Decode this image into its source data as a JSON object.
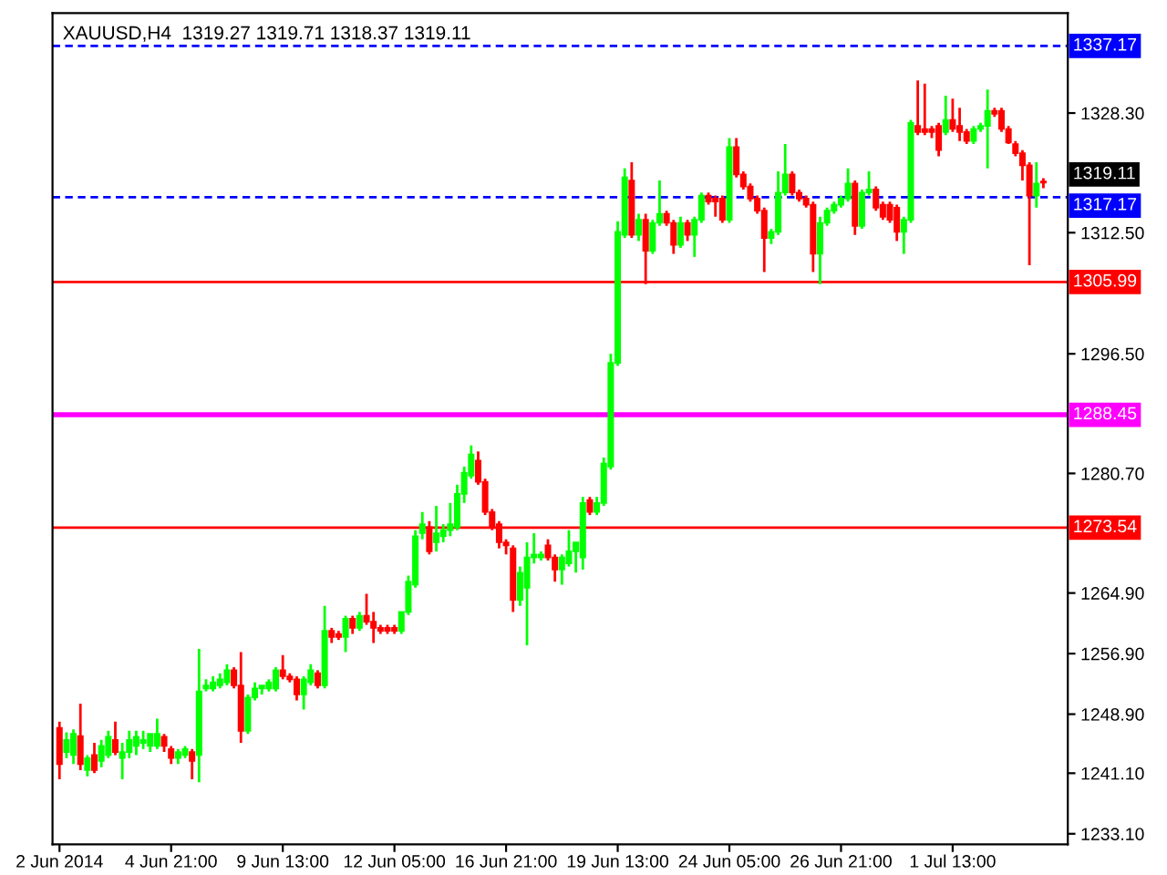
{
  "chart_data": {
    "type": "candlestick",
    "title": "XAUUSD,H4  1319.27 1319.71 1318.37 1319.11",
    "categories": [
      "2 Jun 2014",
      null,
      null,
      null,
      null,
      null,
      null,
      null,
      null,
      null,
      null,
      null,
      null,
      null,
      null,
      null,
      "4 Jun 21:00",
      null,
      null,
      null,
      null,
      null,
      null,
      null,
      null,
      null,
      null,
      null,
      null,
      null,
      null,
      null,
      "9 Jun 13:00",
      null,
      null,
      null,
      null,
      null,
      null,
      null,
      null,
      null,
      null,
      null,
      null,
      null,
      null,
      null,
      "12 Jun 05:00",
      null,
      null,
      null,
      null,
      null,
      null,
      null,
      null,
      null,
      null,
      null,
      null,
      null,
      null,
      null,
      "16 Jun 21:00",
      null,
      null,
      null,
      null,
      null,
      null,
      null,
      null,
      null,
      null,
      null,
      null,
      null,
      null,
      null,
      "19 Jun 13:00",
      null,
      null,
      null,
      null,
      null,
      null,
      null,
      null,
      null,
      null,
      null,
      null,
      null,
      null,
      null,
      "24 Jun 05:00",
      null,
      null,
      null,
      null,
      null,
      null,
      null,
      null,
      null,
      null,
      null,
      null,
      null,
      null,
      null,
      "26 Jun 21:00",
      null,
      null,
      null,
      null,
      null,
      null,
      null,
      null,
      null,
      null,
      null,
      null,
      null,
      null,
      null,
      "1 Jul 13:00",
      null,
      null,
      null,
      null,
      null,
      null,
      null,
      null,
      null,
      null,
      null,
      null,
      null
    ],
    "ohlc": [
      [
        1247.1,
        1247.9,
        1240.3,
        1242.3
      ],
      [
        1243.9,
        1246.5,
        1243.1,
        1245.5
      ],
      [
        1243.5,
        1246.9,
        1242.3,
        1246.3
      ],
      [
        1246.0,
        1250.3,
        1241.5,
        1242.3
      ],
      [
        1241.5,
        1243.5,
        1240.7,
        1243.1
      ],
      [
        1243.5,
        1245.1,
        1241.1,
        1241.5
      ],
      [
        1242.7,
        1245.5,
        1241.9,
        1244.7
      ],
      [
        1243.5,
        1246.7,
        1243.1,
        1245.9
      ],
      [
        1245.5,
        1247.9,
        1243.5,
        1243.9
      ],
      [
        1243.1,
        1245.1,
        1240.3,
        1243.9
      ],
      [
        1243.9,
        1246.7,
        1243.1,
        1245.5
      ],
      [
        1244.7,
        1246.7,
        1243.5,
        1245.9
      ],
      [
        1245.1,
        1246.7,
        1244.3,
        1245.5
      ],
      [
        1244.7,
        1246.3,
        1243.9,
        1246.3
      ],
      [
        1244.7,
        1248.3,
        1244.3,
        1246.3
      ],
      [
        1245.9,
        1246.3,
        1243.9,
        1244.7
      ],
      [
        1244.3,
        1244.7,
        1242.3,
        1243.1
      ],
      [
        1243.1,
        1244.3,
        1242.3,
        1243.9
      ],
      [
        1243.5,
        1244.7,
        1243.1,
        1244.3
      ],
      [
        1243.9,
        1244.3,
        1240.3,
        1242.7
      ],
      [
        1243.5,
        1257.5,
        1239.9,
        1251.9
      ],
      [
        1252.3,
        1253.5,
        1251.9,
        1252.7
      ],
      [
        1252.3,
        1253.9,
        1251.9,
        1253.1
      ],
      [
        1252.7,
        1254.3,
        1252.3,
        1253.5
      ],
      [
        1253.1,
        1255.5,
        1252.7,
        1254.7
      ],
      [
        1254.7,
        1255.1,
        1252.3,
        1252.7
      ],
      [
        1252.7,
        1257.1,
        1245.1,
        1246.7
      ],
      [
        1246.7,
        1251.5,
        1246.3,
        1251.1
      ],
      [
        1251.1,
        1253.1,
        1250.7,
        1252.3
      ],
      [
        1252.3,
        1252.7,
        1251.5,
        1252.7
      ],
      [
        1252.3,
        1253.5,
        1251.9,
        1253.1
      ],
      [
        1252.3,
        1255.1,
        1251.9,
        1254.7
      ],
      [
        1254.7,
        1256.7,
        1253.5,
        1253.9
      ],
      [
        1253.9,
        1254.3,
        1253.1,
        1253.5
      ],
      [
        1253.5,
        1253.9,
        1250.7,
        1251.5
      ],
      [
        1251.5,
        1253.9,
        1249.5,
        1253.5
      ],
      [
        1253.1,
        1255.5,
        1252.7,
        1254.7
      ],
      [
        1254.3,
        1254.7,
        1252.3,
        1252.7
      ],
      [
        1252.7,
        1263.2,
        1252.3,
        1259.9
      ],
      [
        1259.9,
        1260.3,
        1258.3,
        1259.1
      ],
      [
        1259.5,
        1259.9,
        1258.7,
        1259.1
      ],
      [
        1259.1,
        1261.9,
        1257.1,
        1261.5
      ],
      [
        1261.5,
        1261.9,
        1259.5,
        1260.3
      ],
      [
        1260.3,
        1262.4,
        1259.9,
        1261.9
      ],
      [
        1261.9,
        1264.8,
        1260.7,
        1261.1
      ],
      [
        1261.1,
        1262.4,
        1258.3,
        1260.3
      ],
      [
        1260.3,
        1260.7,
        1259.5,
        1259.9
      ],
      [
        1260.3,
        1260.7,
        1259.5,
        1259.9
      ],
      [
        1260.3,
        1260.7,
        1259.5,
        1259.9
      ],
      [
        1259.9,
        1262.4,
        1259.5,
        1262.4
      ],
      [
        1262.4,
        1267.2,
        1262.0,
        1266.4
      ],
      [
        1266.0,
        1273.2,
        1265.6,
        1272.4
      ],
      [
        1272.8,
        1275.6,
        1272.0,
        1274.0
      ],
      [
        1273.6,
        1274.4,
        1270.0,
        1270.4
      ],
      [
        1271.6,
        1276.4,
        1270.4,
        1272.8
      ],
      [
        1272.4,
        1274.0,
        1271.6,
        1273.2
      ],
      [
        1273.2,
        1276.8,
        1272.4,
        1274.0
      ],
      [
        1273.6,
        1279.2,
        1273.2,
        1278.0
      ],
      [
        1278.0,
        1281.6,
        1276.8,
        1280.8
      ],
      [
        1280.4,
        1284.4,
        1280.0,
        1283.2
      ],
      [
        1282.4,
        1283.6,
        1279.2,
        1279.6
      ],
      [
        1279.6,
        1280.0,
        1275.2,
        1275.6
      ],
      [
        1275.6,
        1276.0,
        1273.2,
        1273.6
      ],
      [
        1274.0,
        1274.4,
        1270.8,
        1271.6
      ],
      [
        1271.6,
        1272.0,
        1270.0,
        1271.2
      ],
      [
        1270.8,
        1271.2,
        1262.4,
        1264.0
      ],
      [
        1264.0,
        1268.4,
        1263.2,
        1267.6
      ],
      [
        1265.6,
        1271.6,
        1258.0,
        1269.6
      ],
      [
        1269.6,
        1272.8,
        1268.8,
        1270.0
      ],
      [
        1269.6,
        1270.4,
        1269.2,
        1270.0
      ],
      [
        1271.2,
        1272.0,
        1269.2,
        1269.6
      ],
      [
        1269.6,
        1270.0,
        1266.4,
        1268.0
      ],
      [
        1268.0,
        1270.0,
        1266.0,
        1269.6
      ],
      [
        1268.8,
        1273.2,
        1268.4,
        1270.4
      ],
      [
        1270.4,
        1271.6,
        1267.6,
        1271.6
      ],
      [
        1269.6,
        1277.6,
        1268.0,
        1276.8
      ],
      [
        1277.2,
        1277.6,
        1275.2,
        1275.6
      ],
      [
        1275.6,
        1277.6,
        1275.2,
        1276.8
      ],
      [
        1276.8,
        1282.8,
        1276.4,
        1282.0
      ],
      [
        1281.6,
        1296.5,
        1281.2,
        1295.3
      ],
      [
        1295.3,
        1314.0,
        1294.9,
        1312.6
      ],
      [
        1312.2,
        1321.0,
        1311.8,
        1319.8
      ],
      [
        1319.4,
        1321.8,
        1311.8,
        1312.2
      ],
      [
        1312.2,
        1315.0,
        1311.4,
        1314.2
      ],
      [
        1314.2,
        1315.0,
        1305.7,
        1310.1
      ],
      [
        1310.1,
        1314.2,
        1309.7,
        1313.8
      ],
      [
        1313.8,
        1319.4,
        1313.4,
        1315.0
      ],
      [
        1315.0,
        1315.4,
        1313.4,
        1313.8
      ],
      [
        1313.8,
        1314.2,
        1309.7,
        1310.9
      ],
      [
        1310.9,
        1314.6,
        1310.5,
        1313.8
      ],
      [
        1313.8,
        1314.2,
        1311.4,
        1312.2
      ],
      [
        1312.2,
        1314.6,
        1309.3,
        1314.2
      ],
      [
        1314.2,
        1317.8,
        1313.8,
        1317.4
      ],
      [
        1317.4,
        1317.8,
        1316.2,
        1316.6
      ],
      [
        1317.0,
        1317.4,
        1314.6,
        1316.6
      ],
      [
        1317.0,
        1317.4,
        1313.8,
        1314.2
      ],
      [
        1314.2,
        1325.0,
        1313.8,
        1323.8
      ],
      [
        1323.8,
        1325.0,
        1319.8,
        1320.2
      ],
      [
        1320.2,
        1320.6,
        1318.2,
        1318.6
      ],
      [
        1318.6,
        1319.0,
        1316.6,
        1317.0
      ],
      [
        1317.0,
        1317.4,
        1315.0,
        1315.4
      ],
      [
        1315.4,
        1315.8,
        1307.3,
        1311.8
      ],
      [
        1311.8,
        1313.0,
        1311.0,
        1312.6
      ],
      [
        1312.6,
        1320.6,
        1312.2,
        1317.8
      ],
      [
        1317.8,
        1324.2,
        1317.4,
        1320.2
      ],
      [
        1320.2,
        1320.6,
        1317.4,
        1317.8
      ],
      [
        1317.8,
        1318.2,
        1316.6,
        1317.0
      ],
      [
        1317.0,
        1317.4,
        1315.8,
        1316.2
      ],
      [
        1316.2,
        1316.6,
        1307.3,
        1309.7
      ],
      [
        1309.7,
        1314.6,
        1305.7,
        1313.8
      ],
      [
        1313.8,
        1315.8,
        1313.4,
        1315.4
      ],
      [
        1315.4,
        1316.6,
        1315.0,
        1316.2
      ],
      [
        1316.2,
        1317.4,
        1315.8,
        1317.0
      ],
      [
        1317.0,
        1321.0,
        1316.6,
        1319.0
      ],
      [
        1319.0,
        1319.4,
        1312.2,
        1313.4
      ],
      [
        1313.4,
        1318.2,
        1313.0,
        1317.8
      ],
      [
        1317.8,
        1320.6,
        1317.4,
        1318.2
      ],
      [
        1318.2,
        1318.6,
        1315.4,
        1315.8
      ],
      [
        1316.2,
        1316.6,
        1314.2,
        1314.6
      ],
      [
        1316.2,
        1316.6,
        1313.8,
        1314.2
      ],
      [
        1315.8,
        1316.2,
        1311.4,
        1312.6
      ],
      [
        1312.6,
        1314.6,
        1309.7,
        1314.2
      ],
      [
        1314.2,
        1327.4,
        1313.8,
        1327.0
      ],
      [
        1326.6,
        1332.6,
        1325.4,
        1325.8
      ],
      [
        1326.2,
        1332.2,
        1325.4,
        1325.8
      ],
      [
        1326.2,
        1326.6,
        1325.0,
        1325.8
      ],
      [
        1326.6,
        1327.0,
        1322.6,
        1323.4
      ],
      [
        1325.8,
        1330.6,
        1325.4,
        1327.4
      ],
      [
        1327.4,
        1330.2,
        1325.8,
        1326.2
      ],
      [
        1326.6,
        1329.0,
        1324.6,
        1325.8
      ],
      [
        1325.8,
        1326.2,
        1324.2,
        1324.6
      ],
      [
        1324.6,
        1326.6,
        1324.2,
        1326.2
      ],
      [
        1326.2,
        1327.0,
        1325.8,
        1326.6
      ],
      [
        1326.6,
        1331.4,
        1321.0,
        1328.6
      ],
      [
        1328.6,
        1329.0,
        1327.8,
        1328.2
      ],
      [
        1328.6,
        1329.0,
        1325.8,
        1326.2
      ],
      [
        1326.2,
        1326.6,
        1324.2,
        1324.4
      ],
      [
        1324.2,
        1324.6,
        1322.6,
        1323.0
      ],
      [
        1323.0,
        1323.4,
        1319.4,
        1321.4
      ],
      [
        1321.4,
        1321.8,
        1308.2,
        1317.4
      ],
      [
        1317.4,
        1321.8,
        1315.8,
        1319.0
      ],
      [
        1319.27,
        1319.71,
        1318.37,
        1319.11
      ]
    ],
    "colors": [
      "#ff0000",
      "#00ff00",
      "#00ff00",
      "#ff0000",
      "#00ff00",
      "#ff0000",
      "#00ff00",
      "#00ff00",
      "#ff0000",
      "#00ff00",
      "#00ff00",
      "#00ff00",
      "#00ff00",
      "#00ff00",
      "#00ff00",
      "#ff0000",
      "#ff0000",
      "#00ff00",
      "#00ff00",
      "#ff0000",
      "#00ff00",
      "#00ff00",
      "#00ff00",
      "#00ff00",
      "#00ff00",
      "#ff0000",
      "#ff0000",
      "#00ff00",
      "#00ff00",
      "#00ff00",
      "#00ff00",
      "#00ff00",
      "#ff0000",
      "#ff0000",
      "#ff0000",
      "#00ff00",
      "#00ff00",
      "#ff0000",
      "#00ff00",
      "#ff0000",
      "#ff0000",
      "#00ff00",
      "#ff0000",
      "#00ff00",
      "#ff0000",
      "#ff0000",
      "#ff0000",
      "#ff0000",
      "#ff0000",
      "#00ff00",
      "#00ff00",
      "#00ff00",
      "#00ff00",
      "#ff0000",
      "#00ff00",
      "#00ff00",
      "#00ff00",
      "#00ff00",
      "#00ff00",
      "#00ff00",
      "#ff0000",
      "#ff0000",
      "#ff0000",
      "#ff0000",
      "#ff0000",
      "#ff0000",
      "#00ff00",
      "#00ff00",
      "#00ff00",
      "#00ff00",
      "#ff0000",
      "#ff0000",
      "#00ff00",
      "#00ff00",
      "#00ff00",
      "#00ff00",
      "#ff0000",
      "#00ff00",
      "#00ff00",
      "#00ff00",
      "#00ff00",
      "#00ff00",
      "#ff0000",
      "#00ff00",
      "#ff0000",
      "#00ff00",
      "#00ff00",
      "#ff0000",
      "#ff0000",
      "#00ff00",
      "#ff0000",
      "#00ff00",
      "#00ff00",
      "#ff0000",
      "#ff0000",
      "#ff0000",
      "#00ff00",
      "#ff0000",
      "#ff0000",
      "#ff0000",
      "#ff0000",
      "#ff0000",
      "#00ff00",
      "#00ff00",
      "#00ff00",
      "#ff0000",
      "#ff0000",
      "#ff0000",
      "#ff0000",
      "#00ff00",
      "#00ff00",
      "#00ff00",
      "#00ff00",
      "#00ff00",
      "#ff0000",
      "#00ff00",
      "#00ff00",
      "#ff0000",
      "#ff0000",
      "#ff0000",
      "#ff0000",
      "#00ff00",
      "#00ff00",
      "#ff0000",
      "#ff0000",
      "#ff0000",
      "#ff0000",
      "#00ff00",
      "#ff0000",
      "#ff0000",
      "#ff0000",
      "#00ff00",
      "#00ff00",
      "#00ff00",
      "#ff0000",
      "#ff0000",
      "#ff0000",
      "#ff0000",
      "#ff0000",
      "#ff0000",
      "#00ff00",
      "#ff0000"
    ],
    "ylim": [
      1231.7,
      1341.5
    ],
    "yticks": [
      {
        "value": 1233.1,
        "label": "1233.10"
      },
      {
        "value": 1241.1,
        "label": "1241.10"
      },
      {
        "value": 1248.9,
        "label": "1248.90"
      },
      {
        "value": 1256.9,
        "label": "1256.90"
      },
      {
        "value": 1264.9,
        "label": "1264.90"
      },
      {
        "value": 1280.7,
        "label": "1280.70"
      },
      {
        "value": 1296.5,
        "label": "1296.50"
      },
      {
        "value": 1312.5,
        "label": "1312.50"
      },
      {
        "value": 1328.3,
        "label": "1328.30"
      }
    ],
    "annotations": [
      "1319.11"
    ],
    "ref_lines": [
      {
        "axis": "y",
        "value": 1337.17,
        "label": "1337.17",
        "color": "#0000ff",
        "line_style": "dashed"
      },
      {
        "axis": "y",
        "value": 1317.17,
        "label": "1317.17",
        "color": "#0000ff",
        "line_style": "dashed"
      },
      {
        "axis": "y",
        "value": 1305.99,
        "label": "1305.99",
        "color": "#ff0000",
        "line_style": "solid"
      },
      {
        "axis": "y",
        "value": 1288.45,
        "label": "1288.45",
        "color": "#ff00ff",
        "line_style": "solid"
      },
      {
        "axis": "y",
        "value": 1273.54,
        "label": "1273.54",
        "color": "#ff0000",
        "line_style": "solid"
      }
    ],
    "grid": false
  }
}
